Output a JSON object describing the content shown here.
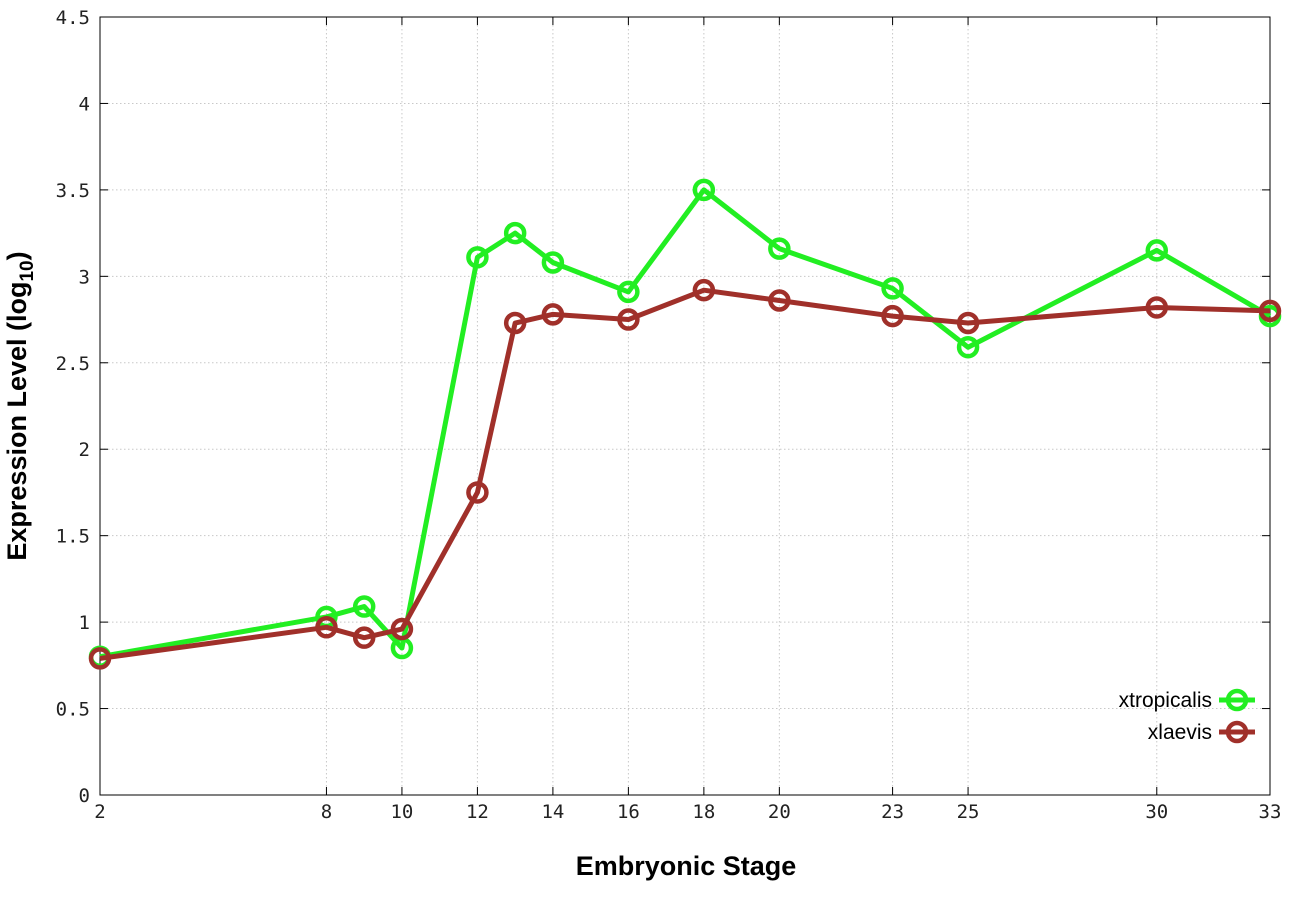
{
  "chart_data": {
    "type": "line",
    "title": "",
    "xlabel": "Embryonic Stage",
    "ylabel_main": "Expression Level (log",
    "ylabel_sub": "10",
    "ylabel_close": ")",
    "x_ticks": [
      "2",
      "8",
      "10",
      "12",
      "14",
      "16",
      "18",
      "20",
      "23",
      "25",
      "30",
      "33"
    ],
    "y_ticks": [
      "0",
      "0.5",
      "1",
      "1.5",
      "2",
      "2.5",
      "3",
      "3.5",
      "4",
      "4.5"
    ],
    "ylim": [
      0,
      4.5
    ],
    "grid": true,
    "legend_position": "bottom-right",
    "x": [
      2,
      8,
      9,
      10,
      12,
      13,
      14,
      16,
      18,
      20,
      23,
      25,
      30,
      33
    ],
    "series": [
      {
        "name": "xtropicalis",
        "color": "#22ee22",
        "values": [
          0.8,
          1.03,
          1.09,
          0.85,
          3.11,
          3.25,
          3.08,
          2.91,
          3.5,
          3.16,
          2.93,
          2.59,
          3.15,
          2.77
        ]
      },
      {
        "name": "xlaevis",
        "color": "#a0302a",
        "values": [
          0.79,
          0.97,
          0.91,
          0.96,
          1.75,
          2.73,
          2.78,
          2.75,
          2.92,
          2.86,
          2.77,
          2.73,
          2.82,
          2.8
        ]
      }
    ]
  }
}
